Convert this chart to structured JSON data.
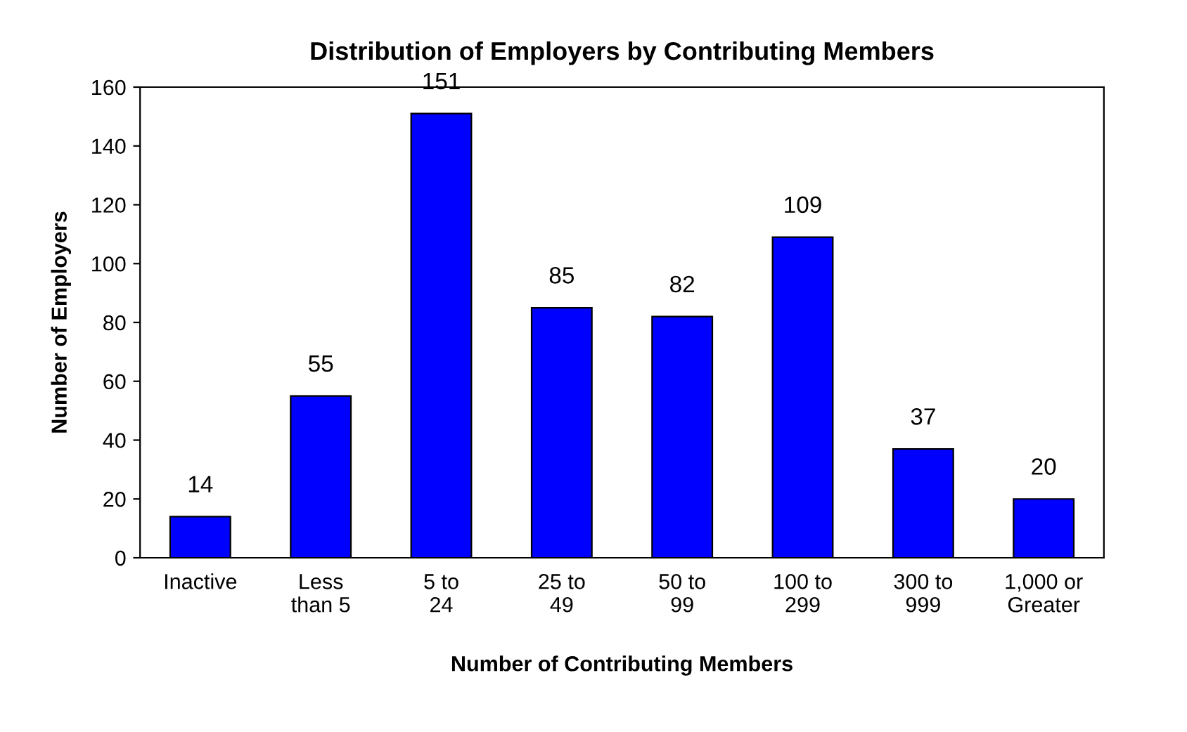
{
  "chart_data": {
    "type": "bar",
    "title": "Distribution of Employers by Contributing Members",
    "xlabel": "Number of Contributing Members",
    "ylabel": "Number of Employers",
    "categories": [
      "Inactive",
      "Less\nthan 5",
      "5 to\n24",
      "25 to\n49",
      "50 to\n99",
      "100 to\n299",
      "300 to\n999",
      "1,000 or\nGreater"
    ],
    "values": [
      14,
      55,
      151,
      85,
      82,
      109,
      37,
      20
    ],
    "color": "#0000ff",
    "ylim": [
      0,
      160
    ],
    "yticks": [
      0,
      20,
      40,
      60,
      80,
      100,
      120,
      140,
      160
    ],
    "data_labels": true,
    "grid": false,
    "legend": false
  }
}
